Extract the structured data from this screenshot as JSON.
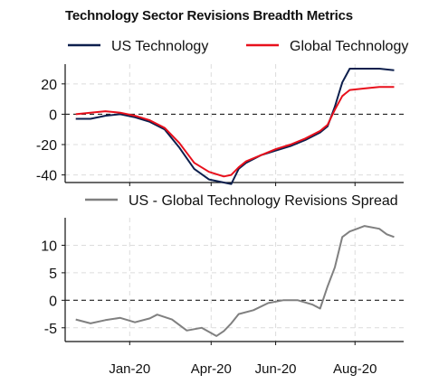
{
  "title": "Technology Sector Revisions Breadth Metrics",
  "chart_data": [
    {
      "type": "line",
      "legend": {
        "placement": "top",
        "entries": [
          "US Technology",
          "Global Technology"
        ]
      },
      "grid": true,
      "zero_line": true,
      "ylim": [
        -45,
        33
      ],
      "yticks": [
        20,
        0,
        -20,
        -40
      ],
      "x_ticks": [
        "Jan-20",
        "Apr-20",
        "Jun-20",
        "Aug-20"
      ],
      "series": [
        {
          "name": "US Technology",
          "color": "#0d1f4d",
          "points": [
            [
              "2019-11-25",
              -3
            ],
            [
              "2019-12-09",
              -3
            ],
            [
              "2019-12-23",
              -1
            ],
            [
              "2020-01-06",
              0
            ],
            [
              "2020-01-20",
              -2
            ],
            [
              "2020-02-03",
              -5
            ],
            [
              "2020-02-17",
              -10
            ],
            [
              "2020-03-02",
              -22
            ],
            [
              "2020-03-16",
              -36
            ],
            [
              "2020-03-30",
              -43
            ],
            [
              "2020-04-13",
              -45
            ],
            [
              "2020-04-20",
              -46
            ],
            [
              "2020-04-27",
              -36
            ],
            [
              "2020-05-04",
              -32
            ],
            [
              "2020-05-18",
              -27
            ],
            [
              "2020-06-01",
              -24
            ],
            [
              "2020-06-15",
              -21
            ],
            [
              "2020-06-29",
              -17
            ],
            [
              "2020-07-13",
              -12
            ],
            [
              "2020-07-20",
              -8
            ],
            [
              "2020-07-27",
              5
            ],
            [
              "2020-08-03",
              21
            ],
            [
              "2020-08-10",
              30
            ],
            [
              "2020-08-24",
              30
            ],
            [
              "2020-09-07",
              30
            ],
            [
              "2020-09-21",
              29
            ]
          ]
        },
        {
          "name": "Global Technology",
          "color": "#e8101c",
          "points": [
            [
              "2019-11-25",
              0
            ],
            [
              "2019-12-09",
              1
            ],
            [
              "2019-12-23",
              2
            ],
            [
              "2020-01-06",
              1
            ],
            [
              "2020-01-20",
              -1
            ],
            [
              "2020-02-03",
              -4
            ],
            [
              "2020-02-17",
              -9
            ],
            [
              "2020-03-02",
              -19
            ],
            [
              "2020-03-16",
              -32
            ],
            [
              "2020-03-30",
              -38
            ],
            [
              "2020-04-13",
              -41
            ],
            [
              "2020-04-20",
              -40
            ],
            [
              "2020-04-27",
              -35
            ],
            [
              "2020-05-04",
              -31
            ],
            [
              "2020-05-18",
              -27
            ],
            [
              "2020-06-01",
              -23
            ],
            [
              "2020-06-15",
              -20
            ],
            [
              "2020-06-29",
              -16
            ],
            [
              "2020-07-13",
              -11
            ],
            [
              "2020-07-20",
              -7
            ],
            [
              "2020-07-27",
              3
            ],
            [
              "2020-08-03",
              12
            ],
            [
              "2020-08-10",
              16
            ],
            [
              "2020-08-24",
              17
            ],
            [
              "2020-09-07",
              18
            ],
            [
              "2020-09-21",
              18
            ]
          ]
        }
      ]
    },
    {
      "type": "line",
      "legend": {
        "placement": "top",
        "entries": [
          "US - Global Technology Revisions Spread"
        ]
      },
      "grid": true,
      "zero_line": true,
      "ylim": [
        -7.5,
        15
      ],
      "yticks": [
        10,
        5,
        0,
        -5
      ],
      "x_ticks": [
        "Jan-20",
        "Apr-20",
        "Jun-20",
        "Aug-20"
      ],
      "series": [
        {
          "name": "US - Global Technology Revisions Spread",
          "color": "#808080",
          "points": [
            [
              "2019-11-25",
              -3.5
            ],
            [
              "2019-12-09",
              -4.2
            ],
            [
              "2019-12-23",
              -3.6
            ],
            [
              "2020-01-06",
              -3.2
            ],
            [
              "2020-01-20",
              -4.0
            ],
            [
              "2020-02-03",
              -3.3
            ],
            [
              "2020-02-10",
              -2.6
            ],
            [
              "2020-02-24",
              -3.5
            ],
            [
              "2020-03-09",
              -5.5
            ],
            [
              "2020-03-23",
              -5.0
            ],
            [
              "2020-04-06",
              -6.5
            ],
            [
              "2020-04-13",
              -5.6
            ],
            [
              "2020-04-20",
              -4.2
            ],
            [
              "2020-04-27",
              -2.5
            ],
            [
              "2020-05-11",
              -1.8
            ],
            [
              "2020-05-25",
              -0.5
            ],
            [
              "2020-06-08",
              0.0
            ],
            [
              "2020-06-22",
              0.0
            ],
            [
              "2020-07-06",
              -0.8
            ],
            [
              "2020-07-13",
              -1.5
            ],
            [
              "2020-07-20",
              2.5
            ],
            [
              "2020-07-27",
              6.0
            ],
            [
              "2020-08-03",
              11.5
            ],
            [
              "2020-08-10",
              12.5
            ],
            [
              "2020-08-17",
              13.0
            ],
            [
              "2020-08-24",
              13.5
            ],
            [
              "2020-09-07",
              13.0
            ],
            [
              "2020-09-14",
              12.0
            ],
            [
              "2020-09-21",
              11.5
            ]
          ]
        }
      ]
    }
  ]
}
